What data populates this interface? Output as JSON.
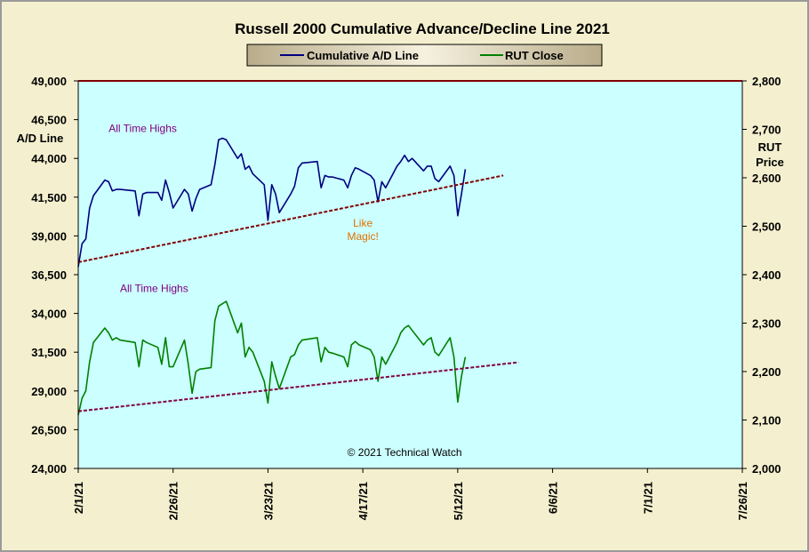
{
  "chart_data": {
    "type": "line",
    "title": "Russell 2000 Cumulative Advance/Decline Line 2021",
    "legend": {
      "placement": "top-center",
      "entries": [
        {
          "name": "Cumulative A/D Line",
          "color": "#000080"
        },
        {
          "name": "RUT Close",
          "color": "#008000"
        }
      ]
    },
    "y_left": {
      "label_lines": [
        "A/D Line"
      ],
      "range": [
        24000,
        49000
      ],
      "ticks": [
        "24,000",
        "26,500",
        "29,000",
        "31,500",
        "34,000",
        "36,500",
        "39,000",
        "41,500",
        "44,000",
        "46,500",
        "49,000"
      ]
    },
    "y_right": {
      "label_lines": [
        "RUT",
        "Price"
      ],
      "range": [
        2000,
        2800
      ],
      "ticks": [
        "2,000",
        "2,100",
        "2,200",
        "2,300",
        "2,400",
        "2,500",
        "2,600",
        "2,700",
        "2,800"
      ]
    },
    "x_axis": {
      "range": [
        "2021-02-01",
        "2021-07-26"
      ],
      "ticks": [
        "2/1/21",
        "2/26/21",
        "3/23/21",
        "4/17/21",
        "5/12/21",
        "6/6/21",
        "7/1/21",
        "7/26/21"
      ]
    },
    "series": [
      {
        "name": "Cumulative A/D Line",
        "axis": "left",
        "color": "#000080",
        "x": [
          "2021-02-01",
          "2021-02-02",
          "2021-02-03",
          "2021-02-04",
          "2021-02-05",
          "2021-02-08",
          "2021-02-09",
          "2021-02-10",
          "2021-02-11",
          "2021-02-12",
          "2021-02-16",
          "2021-02-17",
          "2021-02-18",
          "2021-02-19",
          "2021-02-22",
          "2021-02-23",
          "2021-02-24",
          "2021-02-25",
          "2021-02-26",
          "2021-03-01",
          "2021-03-02",
          "2021-03-03",
          "2021-03-04",
          "2021-03-05",
          "2021-03-08",
          "2021-03-09",
          "2021-03-10",
          "2021-03-11",
          "2021-03-12",
          "2021-03-15",
          "2021-03-16",
          "2021-03-17",
          "2021-03-18",
          "2021-03-19",
          "2021-03-22",
          "2021-03-23",
          "2021-03-24",
          "2021-03-25",
          "2021-03-26",
          "2021-03-29",
          "2021-03-30",
          "2021-03-31",
          "2021-04-01",
          "2021-04-05",
          "2021-04-06",
          "2021-04-07",
          "2021-04-08",
          "2021-04-09",
          "2021-04-12",
          "2021-04-13",
          "2021-04-14",
          "2021-04-15",
          "2021-04-16",
          "2021-04-19",
          "2021-04-20",
          "2021-04-21",
          "2021-04-22",
          "2021-04-23",
          "2021-04-26",
          "2021-04-27",
          "2021-04-28",
          "2021-04-29",
          "2021-04-30",
          "2021-05-03",
          "2021-05-04",
          "2021-05-05",
          "2021-05-06",
          "2021-05-07",
          "2021-05-10",
          "2021-05-11",
          "2021-05-12",
          "2021-05-13",
          "2021-05-14"
        ],
        "values": [
          37000,
          38500,
          38800,
          40800,
          41600,
          42600,
          42500,
          41900,
          42000,
          42000,
          41900,
          40300,
          41700,
          41800,
          41800,
          41300,
          42600,
          41800,
          40800,
          42000,
          41700,
          40600,
          41400,
          42000,
          42300,
          43600,
          45200,
          45300,
          45200,
          44000,
          44300,
          43300,
          43500,
          43000,
          42300,
          40000,
          42300,
          41700,
          40500,
          41700,
          42200,
          43400,
          43700,
          43800,
          42100,
          42900,
          42800,
          42800,
          42600,
          42100,
          42900,
          43400,
          43300,
          42900,
          42600,
          41200,
          42500,
          42100,
          43500,
          43800,
          44200,
          43800,
          44000,
          43200,
          43500,
          43500,
          42700,
          42500,
          43500,
          42900,
          40300,
          41700,
          43300
        ]
      },
      {
        "name": "RUT Close",
        "axis": "right",
        "color": "#008000",
        "x": [
          "2021-02-01",
          "2021-02-02",
          "2021-02-03",
          "2021-02-04",
          "2021-02-05",
          "2021-02-08",
          "2021-02-09",
          "2021-02-10",
          "2021-02-11",
          "2021-02-12",
          "2021-02-16",
          "2021-02-17",
          "2021-02-18",
          "2021-02-19",
          "2021-02-22",
          "2021-02-23",
          "2021-02-24",
          "2021-02-25",
          "2021-02-26",
          "2021-03-01",
          "2021-03-02",
          "2021-03-03",
          "2021-03-04",
          "2021-03-05",
          "2021-03-08",
          "2021-03-09",
          "2021-03-10",
          "2021-03-11",
          "2021-03-12",
          "2021-03-15",
          "2021-03-16",
          "2021-03-17",
          "2021-03-18",
          "2021-03-19",
          "2021-03-22",
          "2021-03-23",
          "2021-03-24",
          "2021-03-25",
          "2021-03-26",
          "2021-03-29",
          "2021-03-30",
          "2021-03-31",
          "2021-04-01",
          "2021-04-05",
          "2021-04-06",
          "2021-04-07",
          "2021-04-08",
          "2021-04-09",
          "2021-04-12",
          "2021-04-13",
          "2021-04-14",
          "2021-04-15",
          "2021-04-16",
          "2021-04-19",
          "2021-04-20",
          "2021-04-21",
          "2021-04-22",
          "2021-04-23",
          "2021-04-26",
          "2021-04-27",
          "2021-04-28",
          "2021-04-29",
          "2021-04-30",
          "2021-05-03",
          "2021-05-04",
          "2021-05-05",
          "2021-05-06",
          "2021-05-07",
          "2021-05-10",
          "2021-05-11",
          "2021-05-12",
          "2021-05-13",
          "2021-05-14"
        ],
        "values": [
          2110,
          2145,
          2160,
          2220,
          2260,
          2290,
          2280,
          2265,
          2270,
          2265,
          2260,
          2210,
          2265,
          2260,
          2250,
          2215,
          2270,
          2210,
          2210,
          2265,
          2215,
          2155,
          2200,
          2205,
          2208,
          2305,
          2335,
          2340,
          2345,
          2280,
          2300,
          2230,
          2250,
          2240,
          2180,
          2135,
          2220,
          2190,
          2165,
          2230,
          2235,
          2255,
          2265,
          2270,
          2220,
          2250,
          2240,
          2238,
          2230,
          2210,
          2255,
          2262,
          2255,
          2245,
          2230,
          2180,
          2230,
          2215,
          2260,
          2280,
          2290,
          2295,
          2285,
          2255,
          2265,
          2270,
          2240,
          2233,
          2270,
          2230,
          2137,
          2190,
          2230
        ]
      },
      {
        "name": "",
        "axis": "left",
        "style": "dashed",
        "color": "#800000",
        "x": [
          "2021-02-01",
          "2021-05-24"
        ],
        "values": [
          37300,
          42900
        ]
      },
      {
        "name": "",
        "axis": "right",
        "style": "dashed",
        "color": "#800040",
        "x": [
          "2021-02-01",
          "2021-05-28"
        ],
        "values": [
          2118,
          2219
        ]
      }
    ],
    "annotations": [
      {
        "text_lines": [
          "All Time Highs"
        ],
        "color": "#800080",
        "axis": "left",
        "x": "2021-02-18",
        "y": 45700
      },
      {
        "text_lines": [
          "All Time Highs"
        ],
        "color": "#800080",
        "axis": "right",
        "x": "2021-02-21",
        "y": 2364
      },
      {
        "text_lines": [
          "Like",
          "Magic!"
        ],
        "color": "#e07000",
        "axis": "left",
        "x": "2021-04-17",
        "y": 39600
      },
      {
        "text_lines": [
          "© 2021 Technical Watch"
        ],
        "color": "#000000",
        "axis": "left",
        "x": "2021-04-28",
        "y": 24800
      }
    ],
    "grid": false
  }
}
